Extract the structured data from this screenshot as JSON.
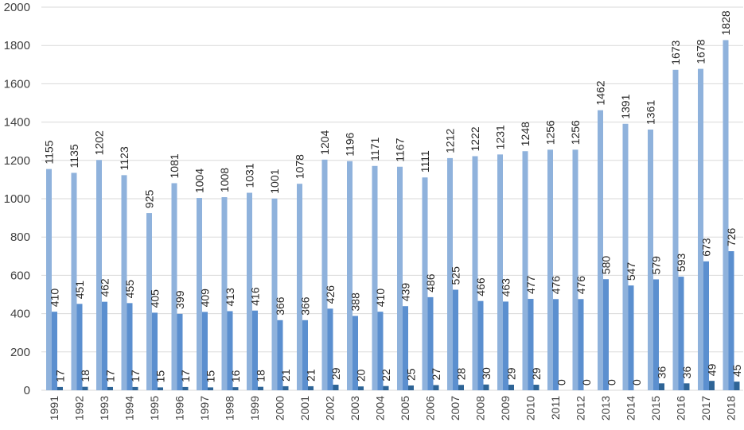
{
  "chart_data": {
    "type": "bar",
    "title": "",
    "xlabel": "",
    "ylabel": "",
    "ylim": [
      0,
      2000
    ],
    "yticks": [
      0,
      200,
      400,
      600,
      800,
      1000,
      1200,
      1400,
      1600,
      1800,
      2000
    ],
    "grid": true,
    "legend": "none",
    "categories": [
      "1991",
      "1992",
      "1993",
      "1994",
      "1995",
      "1996",
      "1997",
      "1998",
      "1999",
      "2000",
      "2001",
      "2002",
      "2003",
      "2004",
      "2005",
      "2006",
      "2007",
      "2008",
      "2009",
      "2010",
      "2011",
      "2012",
      "2013",
      "2014",
      "2015",
      "2016",
      "2017",
      "2018"
    ],
    "series": [
      {
        "color": "#8fb2dc",
        "values": [
          1155,
          1135,
          1202,
          1123,
          925,
          1081,
          1004,
          1008,
          1031,
          1001,
          1078,
          1204,
          1196,
          1171,
          1167,
          1111,
          1212,
          1222,
          1231,
          1248,
          1256,
          1256,
          1462,
          1391,
          1361,
          1673,
          1678,
          1828
        ]
      },
      {
        "color": "#5b8fcf",
        "values": [
          410,
          451,
          462,
          455,
          405,
          399,
          409,
          413,
          416,
          366,
          366,
          426,
          388,
          410,
          439,
          486,
          525,
          466,
          463,
          477,
          476,
          476,
          580,
          547,
          579,
          593,
          673,
          726
        ]
      },
      {
        "color": "#2e6496",
        "values": [
          17,
          18,
          17,
          17,
          15,
          17,
          15,
          16,
          18,
          21,
          21,
          29,
          20,
          22,
          25,
          27,
          28,
          30,
          29,
          29,
          0,
          0,
          0,
          0,
          36,
          36,
          49,
          45
        ]
      }
    ]
  }
}
